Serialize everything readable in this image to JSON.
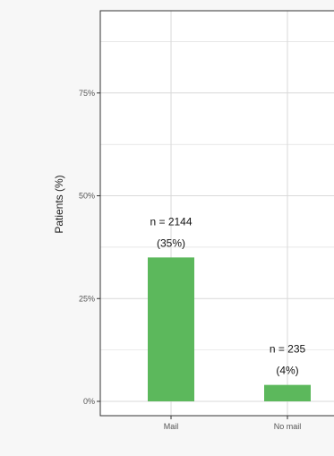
{
  "chart_data": {
    "type": "bar",
    "categories": [
      "Mail",
      "No mail"
    ],
    "values": [
      35,
      4
    ],
    "labels": [
      {
        "n": "n = 2144",
        "pct": "(35%)"
      },
      {
        "n": "n = 235",
        "pct": "(4%)"
      }
    ],
    "ylabel": "Patients (%)",
    "xlabel": "",
    "title": "",
    "ylim": [
      0,
      95
    ],
    "yticks": [
      0,
      25,
      50,
      75
    ],
    "ytick_labels": [
      "0%",
      "25%",
      "50%",
      "75%"
    ],
    "grid": true,
    "legend": "none",
    "colors": {
      "bar": "#5cb85c",
      "panel": "#ffffff",
      "grid": "#d9d9d9",
      "border": "#333333"
    }
  }
}
